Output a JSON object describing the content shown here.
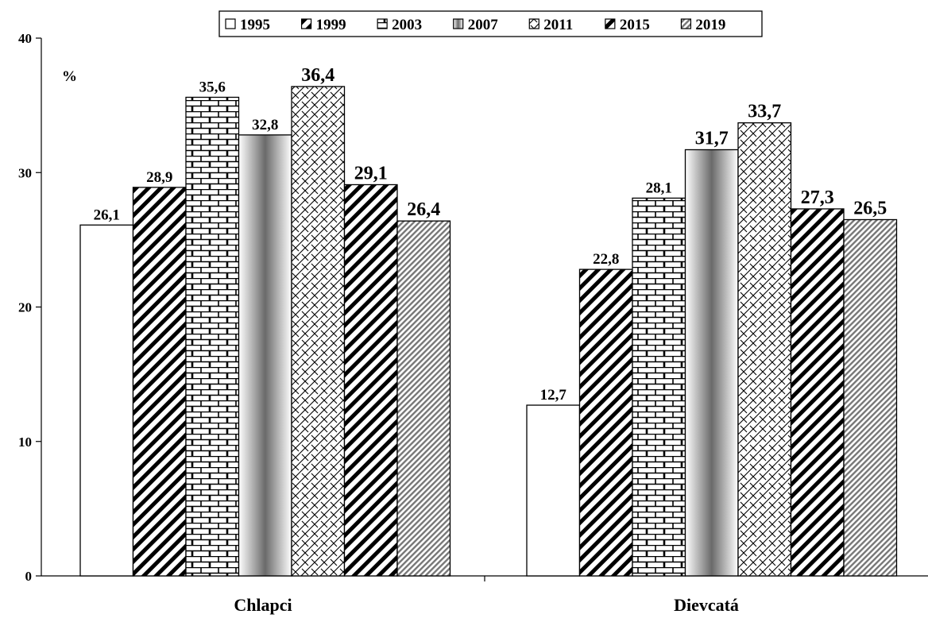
{
  "chart_data": {
    "type": "bar",
    "ylabel": "%",
    "ylim": [
      0,
      40
    ],
    "yticks": [
      0,
      10,
      20,
      30,
      40
    ],
    "grid": false,
    "legend_position": "top-center",
    "categories": [
      "Chlapci",
      "Dievcatá"
    ],
    "series": [
      {
        "name": "1995",
        "values": [
          26.1,
          12.7
        ],
        "labels": [
          "26,1",
          "12,7"
        ],
        "pattern": "solid-white"
      },
      {
        "name": "1999",
        "values": [
          28.9,
          22.8
        ],
        "labels": [
          "28,9",
          "22,8"
        ],
        "pattern": "diagonal-stripes"
      },
      {
        "name": "2003",
        "values": [
          35.6,
          28.1
        ],
        "labels": [
          "35,6",
          "28,1"
        ],
        "pattern": "brick"
      },
      {
        "name": "2007",
        "values": [
          32.8,
          31.7
        ],
        "labels": [
          "32,8",
          "31,7"
        ],
        "pattern": "gray-gradient"
      },
      {
        "name": "2011",
        "values": [
          36.4,
          33.7
        ],
        "labels": [
          "36,4",
          "33,7"
        ],
        "pattern": "crosshatch"
      },
      {
        "name": "2015",
        "values": [
          29.1,
          27.3
        ],
        "labels": [
          "29,1",
          "27,3"
        ],
        "pattern": "diagonal-stripes"
      },
      {
        "name": "2019",
        "values": [
          26.4,
          26.5
        ],
        "labels": [
          "26,4",
          "26,5"
        ],
        "pattern": "fine-gray-diagonal"
      }
    ]
  }
}
